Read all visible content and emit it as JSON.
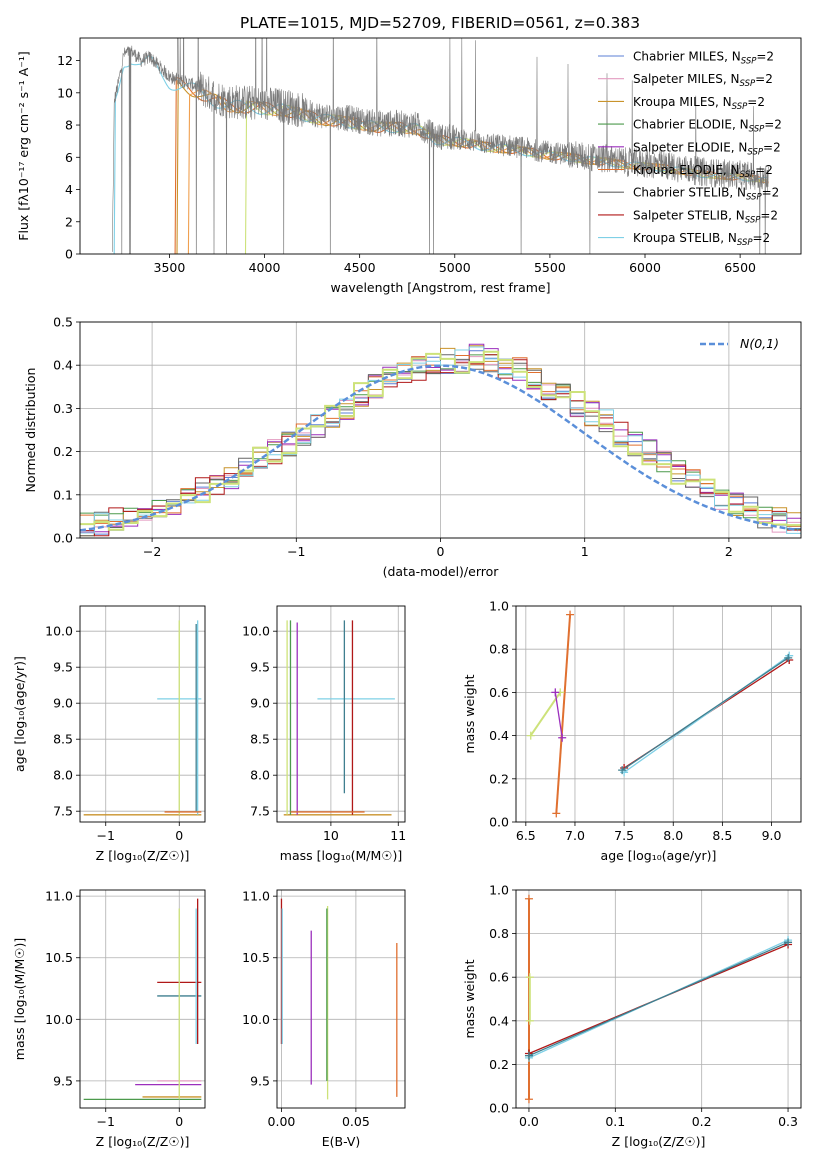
{
  "figure": {
    "title": "PLATE=1015, MJD=52709, FIBERID=0561, z=0.383"
  },
  "legend": {
    "entries": [
      {
        "imf": "Chabrier",
        "lib": "MILES",
        "suffix": "=2",
        "color": "#5b7fd6"
      },
      {
        "imf": "Salpeter",
        "lib": "MILES",
        "suffix": "=2",
        "color": "#e39bc0"
      },
      {
        "imf": "Kroupa",
        "lib": "MILES",
        "suffix": "=2",
        "color": "#c9932b"
      },
      {
        "imf": "Chabrier",
        "lib": "ELODIE",
        "suffix": "=2",
        "color": "#4c9a4c"
      },
      {
        "imf": "Salpeter",
        "lib": "ELODIE",
        "suffix": "=2",
        "color": "#9b2fbd"
      },
      {
        "imf": "Kroupa",
        "lib": "ELODIE",
        "suffix": "=2",
        "color": "#e07030"
      },
      {
        "imf": "Chabrier",
        "lib": "STELIB",
        "suffix": "=2",
        "color": "#666666"
      },
      {
        "imf": "Salpeter",
        "lib": "STELIB",
        "suffix": "=2",
        "color": "#b01818"
      },
      {
        "imf": "Kroupa",
        "lib": "STELIB",
        "suffix": "=2",
        "color": "#7fd0e6"
      }
    ]
  },
  "chart_data": [
    {
      "type": "line",
      "name": "spectrum",
      "xlabel": "wavelength [Angstrom, rest frame]",
      "ylabel": "Flux [fλ10⁻¹⁷ erg cm⁻² s⁻¹ A⁻¹]",
      "xlim": [
        3030,
        6820
      ],
      "ylim": [
        0,
        13.4
      ],
      "xticks": [
        3500,
        4000,
        4500,
        5000,
        5500,
        6000,
        6500
      ],
      "yticks": [
        0,
        2,
        4,
        6,
        8,
        10,
        12
      ],
      "data_continuum": {
        "x": [
          3200,
          3210,
          3230,
          3260,
          3300,
          3350,
          3400,
          3450,
          3500,
          3550,
          3600,
          3650,
          3700,
          3800,
          3900,
          4000,
          4100,
          4200,
          4300,
          4400,
          4500,
          4600,
          4700,
          4800,
          4900,
          5000,
          5100,
          5200,
          5300,
          5400,
          5500,
          5600,
          5700,
          5800,
          5900,
          6000,
          6100,
          6200,
          6300,
          6400,
          6500,
          6600,
          6650
        ],
        "y": [
          0,
          9.5,
          10.5,
          12.4,
          12.6,
          12.0,
          12.2,
          11.6,
          11.0,
          10.8,
          10.6,
          10.4,
          10.0,
          9.5,
          9.4,
          9.3,
          9.2,
          8.9,
          8.6,
          8.5,
          8.3,
          8.1,
          8.1,
          8.0,
          7.3,
          7.2,
          7.0,
          6.8,
          6.7,
          6.5,
          6.3,
          6.2,
          6.0,
          5.9,
          5.7,
          5.6,
          5.5,
          5.3,
          5.1,
          5.0,
          4.9,
          4.8,
          4.7
        ]
      },
      "model_starts": [
        3530,
        3540,
        3600,
        3900,
        3210
      ],
      "model_colors": [
        "#e07030",
        "#c9932b",
        "#f0a050",
        "#cde27a",
        "#7fd0e6"
      ]
    },
    {
      "type": "line",
      "name": "residual_distribution",
      "xlabel": "(data-model)/error",
      "ylabel": "Normed distribution",
      "xlim": [
        -2.5,
        2.5
      ],
      "ylim": [
        0,
        0.5
      ],
      "xticks": [
        -2,
        -1,
        0,
        1,
        2
      ],
      "xtick_labels": [
        "−2",
        "−1",
        "0",
        "1",
        "2"
      ],
      "yticks": [
        0.0,
        0.1,
        0.2,
        0.3,
        0.4,
        0.5
      ],
      "ytick_labels": [
        "0.0",
        "0.1",
        "0.2",
        "0.3",
        "0.4",
        "0.5"
      ],
      "legend_label": "N(0,1)",
      "bin_edges_start": -2.5,
      "bin_width": 0.1,
      "histogram_base": [
        0.03,
        0.03,
        0.04,
        0.05,
        0.06,
        0.07,
        0.08,
        0.09,
        0.11,
        0.12,
        0.14,
        0.16,
        0.18,
        0.2,
        0.22,
        0.24,
        0.26,
        0.28,
        0.3,
        0.33,
        0.35,
        0.37,
        0.38,
        0.39,
        0.4,
        0.41,
        0.41,
        0.42,
        0.41,
        0.4,
        0.39,
        0.37,
        0.35,
        0.33,
        0.31,
        0.29,
        0.27,
        0.24,
        0.22,
        0.2,
        0.18,
        0.15,
        0.13,
        0.11,
        0.09,
        0.08,
        0.07,
        0.05,
        0.04,
        0.03
      ]
    },
    {
      "type": "scatter",
      "name": "age_vs_Z",
      "xlabel": "Z [log₁₀(Z/Z☉)]",
      "ylabel": "age  [log₁₀(age/yr)]",
      "xlim": [
        -1.35,
        0.35
      ],
      "ylim": [
        7.35,
        10.35
      ],
      "xticks": [
        -1,
        0
      ],
      "xtick_labels": [
        "−1",
        "0"
      ],
      "yticks": [
        7.5,
        8.0,
        8.5,
        9.0,
        9.5,
        10.0
      ],
      "ytick_labels": [
        "7.5",
        "8.0",
        "8.5",
        "9.0",
        "9.5",
        "10.0"
      ],
      "segments": [
        {
          "x1": -1.3,
          "y1": 7.45,
          "x2": 0.3,
          "y2": 7.45,
          "color": "#c9932b"
        },
        {
          "x1": -0.3,
          "y1": 9.06,
          "x2": 0.3,
          "y2": 9.06,
          "color": "#7fd0e6"
        },
        {
          "x1": 0.0,
          "y1": 7.45,
          "x2": 0.0,
          "y2": 10.15,
          "color": "#cde27a"
        },
        {
          "x1": 0.25,
          "y1": 7.45,
          "x2": 0.25,
          "y2": 10.15,
          "color": "#7fd0e6"
        },
        {
          "x1": 0.23,
          "y1": 7.5,
          "x2": 0.23,
          "y2": 10.1,
          "color": "#3f7f8f"
        },
        {
          "x1": -0.2,
          "y1": 7.49,
          "x2": 0.3,
          "y2": 7.49,
          "color": "#e07030"
        }
      ]
    },
    {
      "type": "scatter",
      "name": "age_vs_mass",
      "xlabel": "mass [log₁₀(M/M☉)]",
      "xlim": [
        9.2,
        11.1
      ],
      "ylim": [
        7.35,
        10.35
      ],
      "xticks": [
        10,
        11
      ],
      "xtick_labels": [
        "10",
        "11"
      ],
      "yticks": [
        7.5,
        8.0,
        8.5,
        9.0,
        9.5,
        10.0
      ],
      "ytick_labels": [
        "7.5",
        "8.0",
        "8.5",
        "9.0",
        "9.5",
        "10.0"
      ],
      "segments": [
        {
          "x1": 9.3,
          "y1": 7.45,
          "x2": 10.9,
          "y2": 7.45,
          "color": "#c9932b"
        },
        {
          "x1": 9.8,
          "y1": 9.06,
          "x2": 10.95,
          "y2": 9.06,
          "color": "#7fd0e6"
        },
        {
          "x1": 9.35,
          "y1": 7.45,
          "x2": 9.35,
          "y2": 10.15,
          "color": "#cde27a"
        },
        {
          "x1": 9.4,
          "y1": 7.45,
          "x2": 9.4,
          "y2": 10.15,
          "color": "#4c9a4c"
        },
        {
          "x1": 9.5,
          "y1": 7.45,
          "x2": 9.5,
          "y2": 10.12,
          "color": "#9b2fbd"
        },
        {
          "x1": 10.2,
          "y1": 7.75,
          "x2": 10.2,
          "y2": 10.15,
          "color": "#3f7f8f"
        },
        {
          "x1": 10.32,
          "y1": 7.45,
          "x2": 10.32,
          "y2": 10.15,
          "color": "#b01818"
        },
        {
          "x1": 9.4,
          "y1": 7.49,
          "x2": 10.5,
          "y2": 7.49,
          "color": "#e07030"
        }
      ]
    },
    {
      "type": "line",
      "name": "massweight_vs_age",
      "xlabel": "age  [log₁₀(age/yr)]",
      "ylabel": "mass weight",
      "xlim": [
        6.4,
        9.3
      ],
      "ylim": [
        0.0,
        1.0
      ],
      "xticks": [
        6.5,
        7.0,
        7.5,
        8.0,
        8.5,
        9.0
      ],
      "xtick_labels": [
        "6.5",
        "7.0",
        "7.5",
        "8.0",
        "8.5",
        "9.0"
      ],
      "yticks": [
        0.0,
        0.2,
        0.4,
        0.6,
        0.8,
        1.0
      ],
      "ytick_labels": [
        "0.0",
        "0.2",
        "0.4",
        "0.6",
        "0.8",
        "1.0"
      ],
      "series": [
        {
          "x": [
            6.81,
            6.95
          ],
          "y": [
            0.04,
            0.96
          ],
          "color": "#e07030"
        },
        {
          "x": [
            6.55,
            6.85
          ],
          "y": [
            0.4,
            0.6
          ],
          "color": "#cde27a"
        },
        {
          "x": [
            6.8,
            6.87
          ],
          "y": [
            0.6,
            0.39
          ],
          "color": "#9b2fbd"
        },
        {
          "x": [
            7.5,
            9.18
          ],
          "y": [
            0.25,
            0.75
          ],
          "color": "#b01818"
        },
        {
          "x": [
            7.5,
            9.18
          ],
          "y": [
            0.23,
            0.77
          ],
          "color": "#7fd0e6"
        },
        {
          "x": [
            7.48,
            9.17
          ],
          "y": [
            0.24,
            0.76
          ],
          "color": "#3f7f8f"
        }
      ]
    },
    {
      "type": "scatter",
      "name": "mass_vs_Z",
      "xlabel": "Z [log₁₀(Z/Z☉)]",
      "ylabel": "mass [log₁₀(M/M☉)]",
      "xlim": [
        -1.35,
        0.35
      ],
      "ylim": [
        9.28,
        11.05
      ],
      "xticks": [
        -1,
        0
      ],
      "xtick_labels": [
        "−1",
        "0"
      ],
      "yticks": [
        9.5,
        10.0,
        10.5,
        11.0
      ],
      "ytick_labels": [
        "9.5",
        "10.0",
        "10.5",
        "11.0"
      ],
      "segments": [
        {
          "x1": -0.3,
          "y1": 10.3,
          "x2": 0.3,
          "y2": 10.3,
          "color": "#b01818"
        },
        {
          "x1": -0.3,
          "y1": 10.19,
          "x2": 0.3,
          "y2": 10.19,
          "color": "#3f7f8f"
        },
        {
          "x1": -0.6,
          "y1": 9.47,
          "x2": 0.3,
          "y2": 9.47,
          "color": "#9b2fbd"
        },
        {
          "x1": -0.3,
          "y1": 9.5,
          "x2": 0.3,
          "y2": 9.5,
          "color": "#e39bc0"
        },
        {
          "x1": -1.3,
          "y1": 9.35,
          "x2": 0.3,
          "y2": 9.35,
          "color": "#4c9a4c"
        },
        {
          "x1": -0.5,
          "y1": 9.37,
          "x2": 0.3,
          "y2": 9.37,
          "color": "#c9932b"
        },
        {
          "x1": 0.0,
          "y1": 9.35,
          "x2": 0.0,
          "y2": 10.9,
          "color": "#cde27a"
        },
        {
          "x1": 0.25,
          "y1": 9.8,
          "x2": 0.25,
          "y2": 10.98,
          "color": "#b01818"
        },
        {
          "x1": 0.23,
          "y1": 9.8,
          "x2": 0.23,
          "y2": 10.9,
          "color": "#7fd0e6"
        }
      ]
    },
    {
      "type": "scatter",
      "name": "mass_vs_EBV",
      "xlabel": "E(B-V)",
      "xlim": [
        -0.003,
        0.083
      ],
      "ylim": [
        9.28,
        11.05
      ],
      "xticks": [
        0.0,
        0.05
      ],
      "xtick_labels": [
        "0.00",
        "0.05"
      ],
      "yticks": [
        9.5,
        10.0,
        10.5,
        11.0
      ],
      "ytick_labels": [
        "9.5",
        "10.0",
        "10.5",
        "11.0"
      ],
      "segments": [
        {
          "x1": 0.0,
          "y1": 9.8,
          "x2": 0.0,
          "y2": 10.98,
          "color": "#b01818"
        },
        {
          "x1": 0.0005,
          "y1": 9.8,
          "x2": 0.0005,
          "y2": 10.9,
          "color": "#7fd0e6"
        },
        {
          "x1": 0.02,
          "y1": 9.47,
          "x2": 0.02,
          "y2": 10.72,
          "color": "#9b2fbd"
        },
        {
          "x1": 0.031,
          "y1": 9.35,
          "x2": 0.031,
          "y2": 10.92,
          "color": "#cde27a"
        },
        {
          "x1": 0.0305,
          "y1": 9.5,
          "x2": 0.0305,
          "y2": 10.9,
          "color": "#4c9a4c"
        },
        {
          "x1": 0.0775,
          "y1": 9.37,
          "x2": 0.0775,
          "y2": 10.62,
          "color": "#e07030"
        }
      ]
    },
    {
      "type": "line",
      "name": "massweight_vs_Z",
      "xlabel": "Z [log₁₀(Z/Z☉)]",
      "ylabel": "mass weight",
      "xlim": [
        -0.015,
        0.315
      ],
      "ylim": [
        0.0,
        1.0
      ],
      "xticks": [
        0.0,
        0.1,
        0.2,
        0.3
      ],
      "xtick_labels": [
        "0.0",
        "0.1",
        "0.2",
        "0.3"
      ],
      "yticks": [
        0.0,
        0.2,
        0.4,
        0.6,
        0.8,
        1.0
      ],
      "ytick_labels": [
        "0.0",
        "0.2",
        "0.4",
        "0.6",
        "0.8",
        "1.0"
      ],
      "series": [
        {
          "x": [
            0.0,
            0.0
          ],
          "y": [
            0.04,
            0.96
          ],
          "color": "#e07030"
        },
        {
          "x": [
            0.001,
            0.001
          ],
          "y": [
            0.4,
            0.6
          ],
          "color": "#cde27a"
        },
        {
          "x": [
            0.0,
            0.3
          ],
          "y": [
            0.25,
            0.75
          ],
          "color": "#b01818"
        },
        {
          "x": [
            0.0,
            0.3
          ],
          "y": [
            0.23,
            0.77
          ],
          "color": "#7fd0e6"
        },
        {
          "x": [
            0.0,
            0.3
          ],
          "y": [
            0.24,
            0.76
          ],
          "color": "#3f7f8f"
        }
      ]
    }
  ]
}
